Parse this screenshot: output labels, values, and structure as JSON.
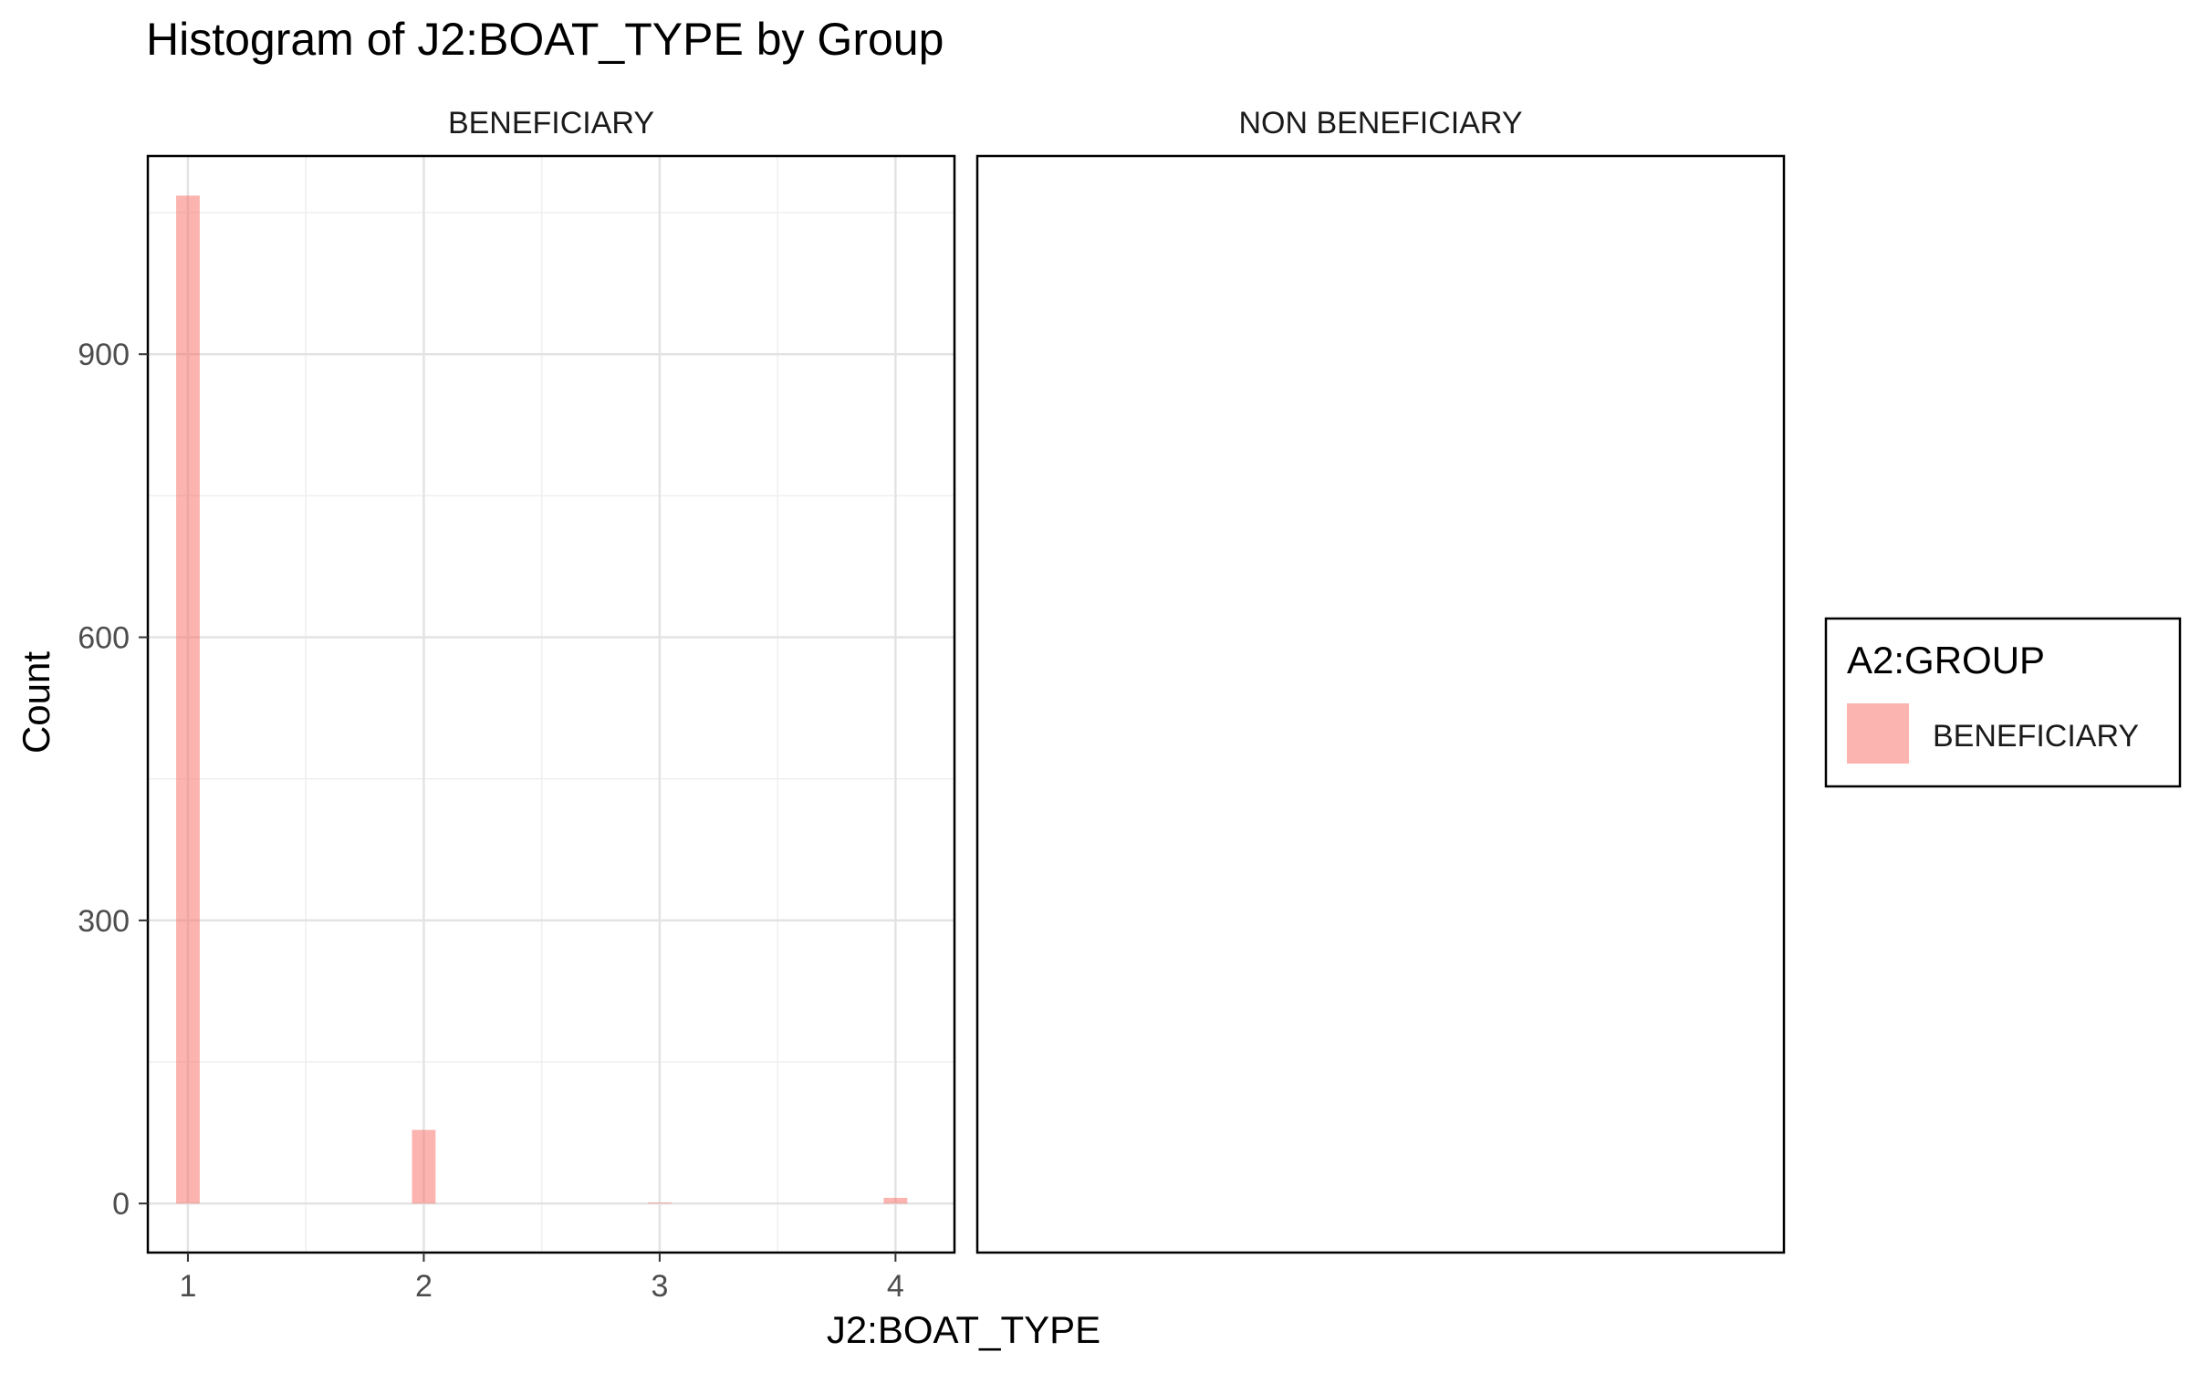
{
  "chart_data": {
    "type": "bar",
    "title": "Histogram of J2:BOAT_TYPE by Group",
    "xlabel": "J2:BOAT_TYPE",
    "ylabel": "Count",
    "xlim": [
      0.83,
      4.25
    ],
    "ylim": [
      -52,
      1110
    ],
    "x_ticks": [
      "1",
      "2",
      "3",
      "4"
    ],
    "y_ticks": [
      "0",
      "300",
      "600",
      "900"
    ],
    "grid": true,
    "panels": [
      {
        "name": "BENEFICIARY",
        "bars": [
          {
            "x": 1.0,
            "y": 1068
          },
          {
            "x": 2.0,
            "y": 78
          },
          {
            "x": 3.0,
            "y": 1
          },
          {
            "x": 4.0,
            "y": 6
          }
        ]
      },
      {
        "name": "NON BENEFICIARY",
        "bars": []
      }
    ],
    "legend": {
      "title": "A2:GROUP",
      "position": "right",
      "items": [
        {
          "label": "BENEFICIARY",
          "color": "#F8766D"
        }
      ]
    },
    "bar_color": "#F8766D"
  }
}
